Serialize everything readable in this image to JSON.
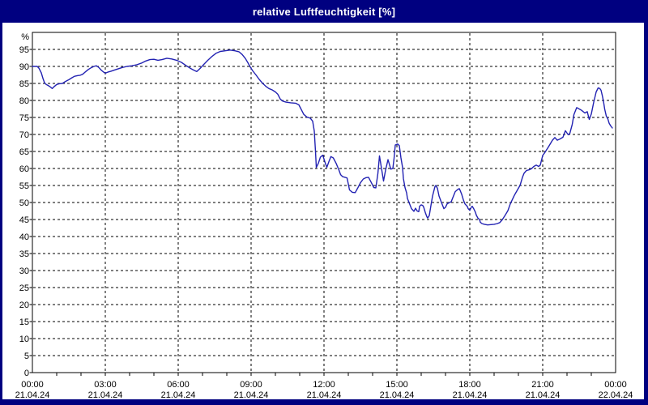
{
  "window": {
    "title": "relative Luftfeuchtigkeit [%]"
  },
  "colors": {
    "chrome": "#000080",
    "title_text": "#ffffff",
    "panel_background": "#ffffff",
    "grid": "#000000",
    "frame": "#000000",
    "label_text": "#000000",
    "line": "#2222b2"
  },
  "chart_data": {
    "type": "line",
    "title": "relative Luftfeuchtigkeit [%]",
    "ylabel": "%",
    "xlabel": "",
    "ylim": [
      0,
      100
    ],
    "y_tick_interval": 5,
    "y_ticks": [
      95,
      90,
      85,
      80,
      75,
      70,
      65,
      60,
      55,
      50,
      45,
      40,
      35,
      30,
      25,
      20,
      15,
      10,
      5,
      0
    ],
    "x_range_minutes": [
      0,
      1440
    ],
    "x_major_tick_minutes": 180,
    "x_minor_tick_minutes": 60,
    "grid": "dashed",
    "legend": "none",
    "x_ticks": [
      {
        "time": "00:00",
        "date": "21.04.24"
      },
      {
        "time": "03:00",
        "date": "21.04.24"
      },
      {
        "time": "06:00",
        "date": "21.04.24"
      },
      {
        "time": "09:00",
        "date": "21.04.24"
      },
      {
        "time": "12:00",
        "date": "21.04.24"
      },
      {
        "time": "15:00",
        "date": "21.04.24"
      },
      {
        "time": "18:00",
        "date": "21.04.24"
      },
      {
        "time": "21:00",
        "date": "21.04.24"
      },
      {
        "time": "00:00",
        "date": "22.04.24"
      }
    ],
    "series": [
      {
        "name": "relative Luftfeuchtigkeit",
        "unit": "%",
        "color": "#2222b2",
        "points": [
          [
            0,
            90
          ],
          [
            12,
            90
          ],
          [
            16,
            89.5
          ],
          [
            22,
            88.1
          ],
          [
            26,
            86.5
          ],
          [
            30,
            85.2
          ],
          [
            34,
            84.7
          ],
          [
            40,
            84.3
          ],
          [
            45,
            83.9
          ],
          [
            49,
            83.5
          ],
          [
            54,
            84.1
          ],
          [
            60,
            84.7
          ],
          [
            66,
            84.9
          ],
          [
            74,
            85
          ],
          [
            82,
            85.6
          ],
          [
            90,
            86.1
          ],
          [
            98,
            86.7
          ],
          [
            104,
            87.1
          ],
          [
            112,
            87.3
          ],
          [
            118,
            87.4
          ],
          [
            124,
            87.7
          ],
          [
            130,
            88.3
          ],
          [
            138,
            89.1
          ],
          [
            146,
            89.7
          ],
          [
            152,
            90
          ],
          [
            158,
            90.2
          ],
          [
            164,
            89.7
          ],
          [
            170,
            88.9
          ],
          [
            176,
            88.3
          ],
          [
            180,
            88
          ],
          [
            186,
            88.3
          ],
          [
            194,
            88.6
          ],
          [
            202,
            88.9
          ],
          [
            212,
            89.3
          ],
          [
            222,
            89.7
          ],
          [
            234,
            90
          ],
          [
            246,
            90.2
          ],
          [
            258,
            90.5
          ],
          [
            270,
            91
          ],
          [
            280,
            91.6
          ],
          [
            290,
            92
          ],
          [
            300,
            92.1
          ],
          [
            310,
            91.8
          ],
          [
            320,
            92
          ],
          [
            332,
            92.4
          ],
          [
            344,
            92.2
          ],
          [
            356,
            91.8
          ],
          [
            368,
            91.2
          ],
          [
            380,
            90.2
          ],
          [
            392,
            89.3
          ],
          [
            400,
            88.8
          ],
          [
            406,
            88.5
          ],
          [
            414,
            89.4
          ],
          [
            424,
            90.7
          ],
          [
            434,
            91.9
          ],
          [
            444,
            93
          ],
          [
            454,
            93.9
          ],
          [
            464,
            94.4
          ],
          [
            476,
            94.6
          ],
          [
            488,
            94.8
          ],
          [
            500,
            94.6
          ],
          [
            510,
            94.3
          ],
          [
            518,
            93.5
          ],
          [
            526,
            92.3
          ],
          [
            532,
            91.1
          ],
          [
            538,
            89.8
          ],
          [
            544,
            88.7
          ],
          [
            552,
            87.5
          ],
          [
            560,
            86.2
          ],
          [
            568,
            85.1
          ],
          [
            576,
            84.2
          ],
          [
            584,
            83.5
          ],
          [
            592,
            83.1
          ],
          [
            600,
            82.5
          ],
          [
            606,
            81.8
          ],
          [
            612,
            80.4
          ],
          [
            618,
            79.8
          ],
          [
            626,
            79.5
          ],
          [
            638,
            79.3
          ],
          [
            650,
            79.2
          ],
          [
            658,
            78.7
          ],
          [
            664,
            77.3
          ],
          [
            670,
            75.9
          ],
          [
            678,
            75.1
          ],
          [
            686,
            74.8
          ],
          [
            692,
            73.9
          ],
          [
            696,
            71
          ],
          [
            699,
            65
          ],
          [
            701,
            60.3
          ],
          [
            706,
            61.5
          ],
          [
            711,
            63.3
          ],
          [
            717,
            63.9
          ],
          [
            722,
            62
          ],
          [
            727,
            60.3
          ],
          [
            732,
            62
          ],
          [
            737,
            63.5
          ],
          [
            743,
            63.1
          ],
          [
            750,
            61.5
          ],
          [
            757,
            59.5
          ],
          [
            761,
            58.2
          ],
          [
            766,
            57.6
          ],
          [
            772,
            57.4
          ],
          [
            777,
            57.2
          ],
          [
            783,
            53.7
          ],
          [
            790,
            53
          ],
          [
            797,
            52.9
          ],
          [
            803,
            54.2
          ],
          [
            810,
            55.8
          ],
          [
            817,
            56.9
          ],
          [
            824,
            57.3
          ],
          [
            830,
            57.4
          ],
          [
            837,
            55.8
          ],
          [
            843,
            54.4
          ],
          [
            848,
            54.3
          ],
          [
            853,
            58.5
          ],
          [
            857,
            63.7
          ],
          [
            862,
            60
          ],
          [
            867,
            56.3
          ],
          [
            872,
            59.5
          ],
          [
            878,
            62.6
          ],
          [
            885,
            59.8
          ],
          [
            890,
            60
          ],
          [
            893,
            63
          ],
          [
            896,
            66.9
          ],
          [
            902,
            67.2
          ],
          [
            906,
            66.7
          ],
          [
            910,
            63.1
          ],
          [
            914,
            60.3
          ],
          [
            916,
            57.1
          ],
          [
            920,
            54.4
          ],
          [
            924,
            52.8
          ],
          [
            926,
            51.2
          ],
          [
            930,
            50
          ],
          [
            936,
            48.2
          ],
          [
            942,
            47.4
          ],
          [
            946,
            48.3
          ],
          [
            950,
            47.5
          ],
          [
            954,
            47.3
          ],
          [
            956,
            48.9
          ],
          [
            960,
            49.3
          ],
          [
            964,
            49.1
          ],
          [
            966,
            48.7
          ],
          [
            970,
            47.1
          ],
          [
            974,
            45.8
          ],
          [
            976,
            45.4
          ],
          [
            980,
            46.2
          ],
          [
            984,
            49.1
          ],
          [
            988,
            51.9
          ],
          [
            994,
            54.7
          ],
          [
            996,
            55
          ],
          [
            1000,
            54.2
          ],
          [
            1004,
            51.9
          ],
          [
            1010,
            50
          ],
          [
            1014,
            48.8
          ],
          [
            1016,
            48.2
          ],
          [
            1020,
            48.6
          ],
          [
            1024,
            49.6
          ],
          [
            1030,
            50
          ],
          [
            1034,
            50.2
          ],
          [
            1036,
            50.8
          ],
          [
            1040,
            52
          ],
          [
            1044,
            53.2
          ],
          [
            1050,
            53.8
          ],
          [
            1054,
            54.1
          ],
          [
            1056,
            53.6
          ],
          [
            1060,
            52.4
          ],
          [
            1064,
            50.8
          ],
          [
            1068,
            49.6
          ],
          [
            1074,
            48.8
          ],
          [
            1076,
            48.2
          ],
          [
            1080,
            47.7
          ],
          [
            1084,
            48.7
          ],
          [
            1086,
            48.9
          ],
          [
            1090,
            48.1
          ],
          [
            1094,
            47.1
          ],
          [
            1096,
            46.3
          ],
          [
            1100,
            45.4
          ],
          [
            1104,
            45
          ],
          [
            1106,
            44.2
          ],
          [
            1110,
            43.8
          ],
          [
            1116,
            43.6
          ],
          [
            1124,
            43.4
          ],
          [
            1132,
            43.5
          ],
          [
            1140,
            43.6
          ],
          [
            1148,
            43.8
          ],
          [
            1154,
            44.1
          ],
          [
            1160,
            44.9
          ],
          [
            1166,
            46
          ],
          [
            1174,
            47.6
          ],
          [
            1180,
            49.6
          ],
          [
            1190,
            52.1
          ],
          [
            1200,
            54.2
          ],
          [
            1204,
            55
          ],
          [
            1210,
            57.4
          ],
          [
            1214,
            58.6
          ],
          [
            1220,
            59.4
          ],
          [
            1226,
            59.6
          ],
          [
            1232,
            59.9
          ],
          [
            1238,
            60.6
          ],
          [
            1244,
            61
          ],
          [
            1250,
            60.6
          ],
          [
            1254,
            61
          ],
          [
            1260,
            63.8
          ],
          [
            1266,
            64.8
          ],
          [
            1274,
            66.3
          ],
          [
            1280,
            67.5
          ],
          [
            1284,
            68.3
          ],
          [
            1290,
            69.1
          ],
          [
            1296,
            68.3
          ],
          [
            1303,
            68.7
          ],
          [
            1310,
            69.2
          ],
          [
            1316,
            71.1
          ],
          [
            1323,
            69.9
          ],
          [
            1327,
            70.3
          ],
          [
            1333,
            73
          ],
          [
            1337,
            75.8
          ],
          [
            1344,
            77.9
          ],
          [
            1350,
            77.5
          ],
          [
            1356,
            77.1
          ],
          [
            1364,
            76.3
          ],
          [
            1370,
            76.7
          ],
          [
            1375,
            74.4
          ],
          [
            1380,
            76
          ],
          [
            1386,
            79.5
          ],
          [
            1392,
            82.5
          ],
          [
            1397,
            83.7
          ],
          [
            1401,
            83.5
          ],
          [
            1404,
            83
          ],
          [
            1407,
            81.5
          ],
          [
            1410,
            79.8
          ],
          [
            1413,
            77.5
          ],
          [
            1417,
            75.4
          ],
          [
            1421,
            74.5
          ],
          [
            1424,
            73.3
          ],
          [
            1428,
            72.5
          ],
          [
            1432,
            71.9
          ]
        ]
      }
    ]
  }
}
